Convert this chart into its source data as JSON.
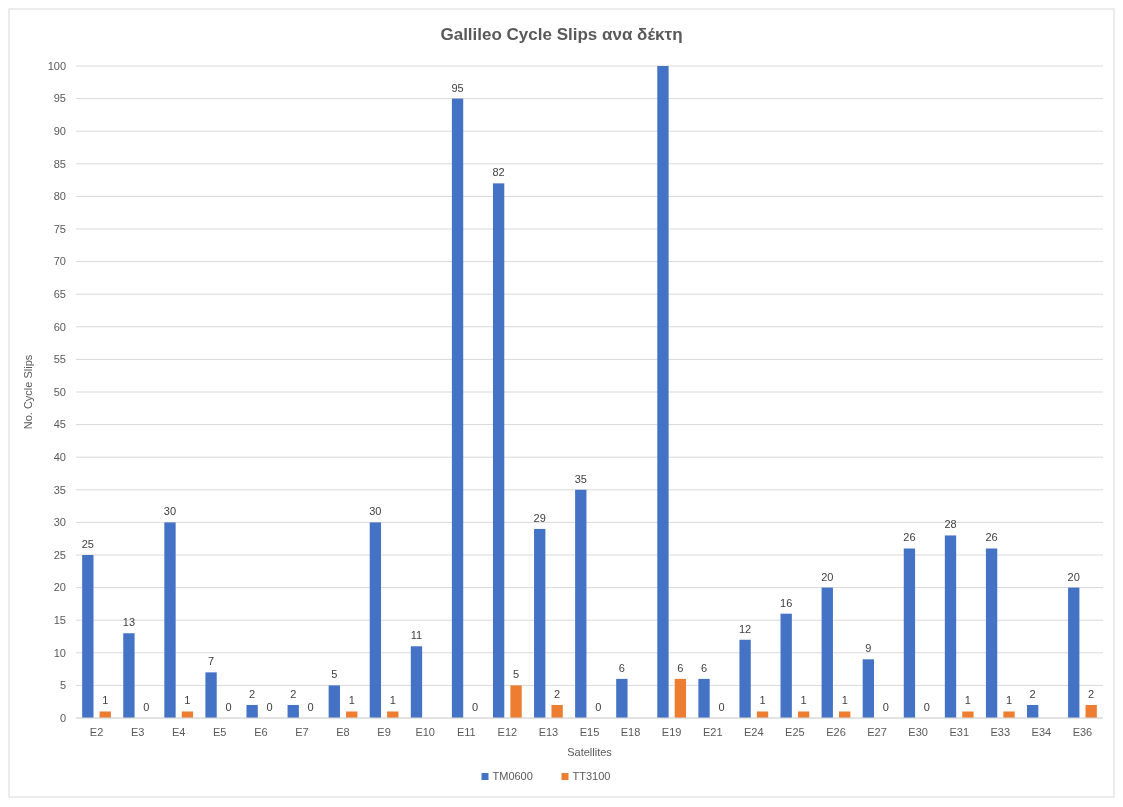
{
  "chart_data": {
    "type": "bar",
    "title": "Gallileo Cycle Slips ανα δέκτη",
    "xlabel": "Satellites",
    "ylabel": "No. Cycle Slips",
    "categories": [
      "E2",
      "E3",
      "E4",
      "E5",
      "E6",
      "E7",
      "E8",
      "E9",
      "E10",
      "E11",
      "E12",
      "E13",
      "E15",
      "E18",
      "E19",
      "E21",
      "E24",
      "E25",
      "E26",
      "E27",
      "E30",
      "E31",
      "E33",
      "E34",
      "E36"
    ],
    "series": [
      {
        "name": "TM0600",
        "color": "#4472c4",
        "values": [
          25,
          13,
          30,
          7,
          2,
          2,
          5,
          30,
          11,
          95,
          82,
          29,
          35,
          6,
          100,
          6,
          12,
          16,
          20,
          9,
          26,
          28,
          26,
          2,
          20
        ],
        "value_labels": [
          "25",
          "13",
          "30",
          "7",
          "2",
          "2",
          "5",
          "30",
          "11",
          "95",
          "82",
          "29",
          "35",
          "6",
          null,
          "6",
          "12",
          "16",
          "20",
          "9",
          "26",
          "28",
          "26",
          "2",
          "20"
        ]
      },
      {
        "name": "TT3100",
        "color": "#ed7d31",
        "values": [
          1,
          0,
          1,
          0,
          0,
          0,
          1,
          1,
          null,
          0,
          5,
          2,
          0,
          null,
          6,
          0,
          1,
          1,
          1,
          0,
          0,
          1,
          1,
          null,
          2
        ],
        "value_labels": [
          "1",
          "0",
          "1",
          "0",
          "0",
          "0",
          "1",
          "1",
          null,
          "0",
          "5",
          "2",
          "0",
          null,
          "6",
          "0",
          "1",
          "1",
          "1",
          "0",
          "0",
          "1",
          "1",
          null,
          "2"
        ]
      }
    ],
    "ylim": [
      0,
      100
    ],
    "yticks": [
      0,
      5,
      10,
      15,
      20,
      25,
      30,
      35,
      40,
      45,
      50,
      55,
      60,
      65,
      70,
      75,
      80,
      85,
      90,
      95,
      100
    ],
    "grid": "y",
    "legend": "bottom"
  }
}
